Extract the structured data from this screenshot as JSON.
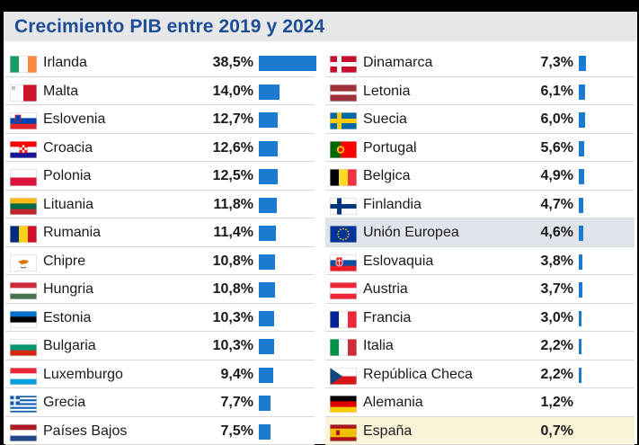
{
  "title": "Crecimiento PIB entre 2019 y 2024",
  "colors": {
    "title": "#1e4e96",
    "bar": "#1b7bd0",
    "highlight_eu": "#dfe3ea",
    "highlight_es": "#fcf4d8"
  },
  "chart_data": {
    "type": "bar",
    "title": "Crecimiento PIB entre 2019 y 2024",
    "unit": "%",
    "orientation": "horizontal",
    "columns": [
      [
        {
          "country": "Irlanda",
          "value": 38.5,
          "label": "38,5%",
          "flag": "ie"
        },
        {
          "country": "Malta",
          "value": 14.0,
          "label": "14,0%",
          "flag": "mt"
        },
        {
          "country": "Eslovenia",
          "value": 12.7,
          "label": "12,7%",
          "flag": "si"
        },
        {
          "country": "Croacia",
          "value": 12.6,
          "label": "12,6%",
          "flag": "hr"
        },
        {
          "country": "Polonia",
          "value": 12.5,
          "label": "12,5%",
          "flag": "pl"
        },
        {
          "country": "Lituania",
          "value": 11.8,
          "label": "11,8%",
          "flag": "lt"
        },
        {
          "country": "Rumania",
          "value": 11.4,
          "label": "11,4%",
          "flag": "ro"
        },
        {
          "country": "Chipre",
          "value": 10.8,
          "label": "10,8%",
          "flag": "cy"
        },
        {
          "country": "Hungria",
          "value": 10.8,
          "label": "10,8%",
          "flag": "hu"
        },
        {
          "country": "Estonia",
          "value": 10.3,
          "label": "10,3%",
          "flag": "ee"
        },
        {
          "country": "Bulgaria",
          "value": 10.3,
          "label": "10,3%",
          "flag": "bg"
        },
        {
          "country": "Luxemburgo",
          "value": 9.4,
          "label": "9,4%",
          "flag": "lu"
        },
        {
          "country": "Grecia",
          "value": 7.7,
          "label": "7,7%",
          "flag": "gr"
        },
        {
          "country": "Países Bajos",
          "value": 7.5,
          "label": "7,5%",
          "flag": "nl"
        }
      ],
      [
        {
          "country": "Dinamarca",
          "value": 7.3,
          "label": "7,3%",
          "flag": "dk"
        },
        {
          "country": "Letonia",
          "value": 6.1,
          "label": "6,1%",
          "flag": "lv"
        },
        {
          "country": "Suecia",
          "value": 6.0,
          "label": "6,0%",
          "flag": "se"
        },
        {
          "country": "Portugal",
          "value": 5.6,
          "label": "5,6%",
          "flag": "pt"
        },
        {
          "country": "Belgica",
          "value": 4.9,
          "label": "4,9%",
          "flag": "be"
        },
        {
          "country": "Finlandia",
          "value": 4.7,
          "label": "4,7%",
          "flag": "fi"
        },
        {
          "country": "Unión Europea",
          "value": 4.6,
          "label": "4,6%",
          "flag": "eu",
          "highlight": "eu"
        },
        {
          "country": "Eslovaquia",
          "value": 3.8,
          "label": "3,8%",
          "flag": "sk"
        },
        {
          "country": "Austria",
          "value": 3.7,
          "label": "3,7%",
          "flag": "at"
        },
        {
          "country": "Francia",
          "value": 3.0,
          "label": "3,0%",
          "flag": "fr"
        },
        {
          "country": "Italia",
          "value": 2.2,
          "label": "2,2%",
          "flag": "it"
        },
        {
          "country": "República Checa",
          "value": 2.2,
          "label": "2,2%",
          "flag": "cz"
        },
        {
          "country": "Alemania",
          "value": 1.2,
          "label": "1,2%",
          "flag": "de"
        },
        {
          "country": "España",
          "value": 0.7,
          "label": "0,7%",
          "flag": "es",
          "highlight": "es"
        }
      ]
    ]
  }
}
